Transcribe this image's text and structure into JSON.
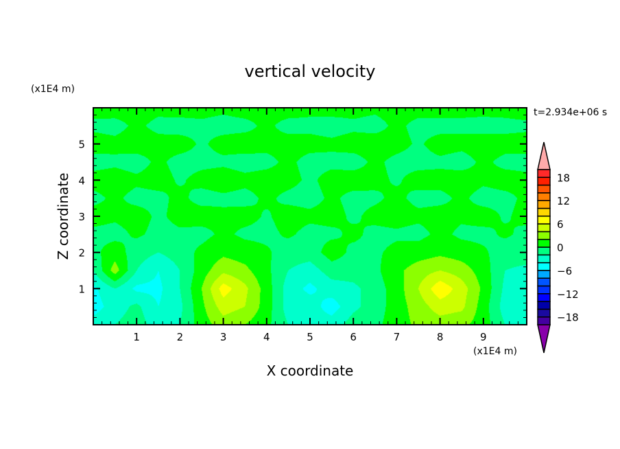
{
  "chart_data": {
    "type": "heatmap",
    "subtype": "filled-contour",
    "title": "vertical velocity",
    "xlabel": "X coordinate",
    "ylabel": "Z coordinate",
    "x_unit_label": "(x1E4 m)",
    "y_unit_label": "(x1E4 m)",
    "time_label": "t=2.934e+06 s",
    "xlim": [
      0,
      10
    ],
    "ylim": [
      0,
      6
    ],
    "xticks": [
      1,
      2,
      3,
      4,
      5,
      6,
      7,
      8,
      9
    ],
    "yticks": [
      1,
      2,
      3,
      4,
      5
    ],
    "grid": false,
    "colorbar": {
      "placement": "right",
      "levels_min": -20,
      "levels_max": 20,
      "level_step": 2,
      "tick_labels": [
        "18",
        "12",
        "6",
        "0",
        "-6",
        "-12",
        "-18"
      ],
      "tick_values": [
        18,
        12,
        6,
        0,
        -6,
        -12,
        -18
      ],
      "colors_bottom_to_top": [
        "#4400a0",
        "#1a0aa0",
        "#0000aa",
        "#0000ff",
        "#0033ff",
        "#0055ff",
        "#00aaff",
        "#00ffff",
        "#00ffcc",
        "#00ff80",
        "#00ff00",
        "#8cff00",
        "#ccff00",
        "#ffff00",
        "#ffd700",
        "#ffaa00",
        "#ff7f00",
        "#ff5500",
        "#ff2000",
        "#ff2a2a"
      ],
      "over_color": "#ffaaaa",
      "under_color": "#8800aa"
    },
    "grid_x": [
      0,
      0.5,
      1,
      1.5,
      2,
      2.5,
      3,
      3.5,
      4,
      4.5,
      5,
      5.5,
      6,
      6.5,
      7,
      7.5,
      8,
      8.5,
      9,
      9.5,
      10
    ],
    "grid_z": [
      0,
      0.5,
      1,
      1.5,
      2,
      2.5,
      3,
      3.5,
      4,
      4.5,
      5,
      5.5,
      6
    ],
    "values": [
      [
        -3,
        -2,
        -1,
        -3,
        -2,
        1,
        3,
        2,
        0.5,
        -2,
        -3,
        -3,
        -1,
        -0.5,
        1,
        2.5,
        3,
        2.5,
        1,
        -2,
        -3
      ],
      [
        -5,
        -3,
        -1.5,
        -4,
        -2.5,
        1.5,
        5,
        4,
        1,
        -3,
        -3,
        -5,
        -2.5,
        -1,
        1,
        3,
        5,
        4.5,
        1,
        -3,
        -3.5
      ],
      [
        -4.5,
        -2,
        -4.5,
        -4.5,
        -2,
        2,
        7,
        4.5,
        1,
        -3,
        -4.5,
        -3,
        -2.5,
        -1,
        1,
        4,
        7.5,
        5,
        1.5,
        -2.5,
        -3
      ],
      [
        -2,
        3,
        -2,
        -4,
        -2,
        1,
        3.5,
        2.5,
        0.5,
        -2,
        -3,
        -1,
        -1,
        -0.5,
        1.5,
        3,
        4,
        3,
        1,
        -2,
        -2.5
      ],
      [
        -0.5,
        1,
        -1,
        -2,
        -1,
        0.5,
        1.5,
        1,
        0.3,
        -1,
        -1,
        1,
        -0.5,
        -0.3,
        0.5,
        1,
        1.5,
        1,
        0.3,
        -1,
        -1
      ],
      [
        -0.4,
        -0.6,
        0.3,
        -0.5,
        -0.3,
        -0.6,
        0.4,
        -0.4,
        -0.5,
        0.3,
        -0.6,
        -0.4,
        0.4,
        -0.5,
        -0.3,
        -0.6,
        0.5,
        -0.4,
        -0.5,
        0.3,
        -0.5
      ],
      [
        0.6,
        0.3,
        0.7,
        -0.3,
        0.5,
        0.8,
        0.3,
        0.6,
        -0.2,
        0.7,
        0.4,
        0.6,
        -0.3,
        0.5,
        0.7,
        0.4,
        0.6,
        0.3,
        0.7,
        -0.2,
        0.5
      ],
      [
        -0.4,
        0.3,
        -0.5,
        -0.4,
        0.4,
        -0.6,
        -0.3,
        -0.5,
        0.3,
        -0.4,
        -0.6,
        0.3,
        -0.5,
        -0.3,
        0.4,
        -0.5,
        -0.4,
        0.3,
        -0.6,
        -0.4,
        0.3
      ],
      [
        0.5,
        0.7,
        0.3,
        0.6,
        -0.2,
        0.5,
        0.8,
        0.4,
        0.6,
        0.5,
        -0.3,
        0.6,
        0.7,
        0.4,
        -0.2,
        0.6,
        0.5,
        0.7,
        0.3,
        0.6,
        0.4
      ],
      [
        -0.5,
        -0.3,
        -0.6,
        0.3,
        -0.5,
        -0.4,
        -0.3,
        -0.6,
        -0.4,
        0.3,
        -0.5,
        -0.4,
        -0.6,
        0.3,
        -0.4,
        -0.5,
        -0.3,
        -0.6,
        0.3,
        -0.4,
        -0.5
      ],
      [
        0.6,
        0.4,
        0.7,
        0.5,
        0.6,
        -0.2,
        0.5,
        0.7,
        0.4,
        0.6,
        0.5,
        0.3,
        0.6,
        0.7,
        0.5,
        -0.2,
        0.6,
        0.4,
        0.7,
        0.5,
        0.6
      ],
      [
        -0.3,
        -0.5,
        0.3,
        -0.4,
        -0.6,
        -0.3,
        -0.5,
        -0.4,
        0.3,
        -0.5,
        -0.4,
        -0.6,
        -0.3,
        -0.5,
        0.3,
        -0.4,
        -0.5,
        -0.3,
        -0.6,
        -0.4,
        -0.3
      ],
      [
        0.5,
        0.7,
        0.6,
        0.4,
        0.7,
        0.5,
        0.3,
        0.6,
        0.5,
        0.7,
        0.4,
        0.6,
        0.5,
        0.3,
        0.6,
        0.5,
        0.7,
        0.4,
        0.6,
        0.5,
        0.7
      ]
    ]
  }
}
